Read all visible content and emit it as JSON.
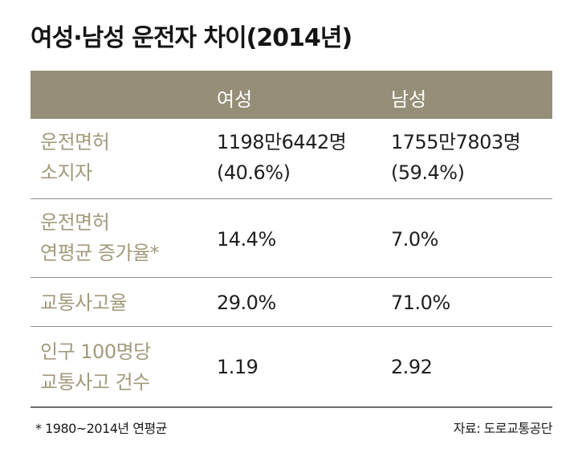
{
  "title": "여성·남성 운전자 차이(2014년)",
  "colors": {
    "header_band": "#968f78",
    "label_text": "#a39a7c",
    "value_text": "#1f1f1f"
  },
  "chart_data": {
    "type": "table",
    "title": "여성·남성 운전자 차이(2014년)",
    "columns": [
      "",
      "여성",
      "남성"
    ],
    "rows": [
      {
        "label": [
          "운전면허",
          "소지자"
        ],
        "female": [
          "1198만6442명",
          "(40.6%)"
        ],
        "male": [
          "1755만7803명",
          "(59.4%)"
        ]
      },
      {
        "label": [
          "운전면허",
          "연평균 증가율*"
        ],
        "female": [
          "14.4%"
        ],
        "male": [
          "7.0%"
        ]
      },
      {
        "label": [
          "교통사고율"
        ],
        "female": [
          "29.0%"
        ],
        "male": [
          "71.0%"
        ]
      },
      {
        "label": [
          "인구 100명당",
          "교통사고 건수"
        ],
        "female": [
          "1.19"
        ],
        "male": [
          "2.92"
        ]
      }
    ],
    "footnote": "* 1980~2014년 연평균",
    "source": "자료: 도로교통공단"
  }
}
